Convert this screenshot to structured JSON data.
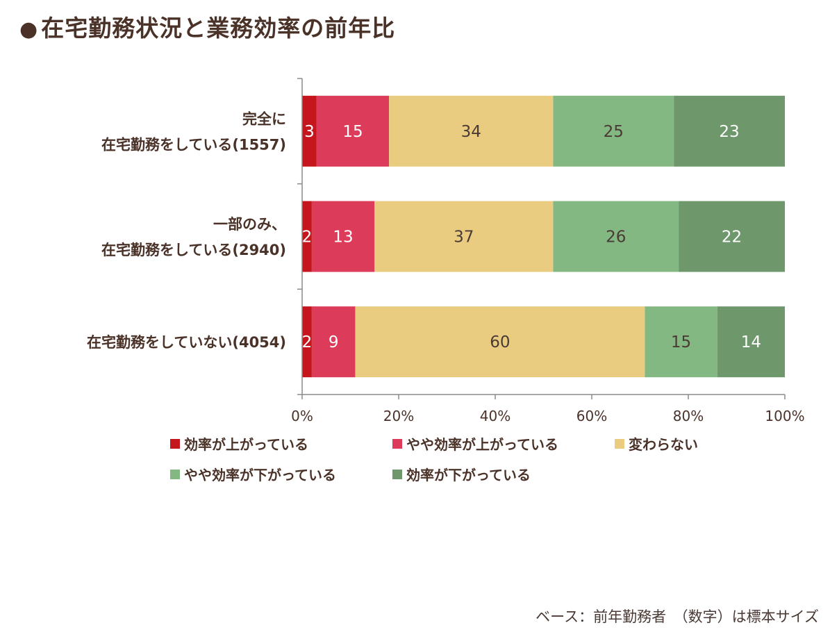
{
  "title": "在宅勤務状況と業務効率の前年比",
  "title_bullet": "●",
  "footer": "ベース：前年勤務者　（数字）は標本サイズ",
  "chart_data": {
    "type": "bar",
    "orientation": "horizontal",
    "stacked": true,
    "normalized": true,
    "categories": [
      [
        "完全に",
        "在宅勤務をしている(1557)"
      ],
      [
        "一部のみ、",
        "在宅勤務をしている(2940)"
      ],
      [
        "在宅勤務をしていない(4054)"
      ]
    ],
    "series": [
      {
        "name": "効率が上がっている",
        "color": "#c4161c",
        "label_color": "#ffffff",
        "values": [
          3,
          2,
          2
        ]
      },
      {
        "name": "やや効率が上がっている",
        "color": "#dc3b5a",
        "label_color": "#ffffff",
        "values": [
          15,
          13,
          9
        ]
      },
      {
        "name": "変わらない",
        "color": "#e9cc80",
        "label_color": "#4a3a35",
        "values": [
          34,
          37,
          60
        ]
      },
      {
        "name": "やや効率が下がっている",
        "color": "#84b882",
        "label_color": "#4a3a35",
        "values": [
          25,
          26,
          15
        ]
      },
      {
        "name": "効率が下がっている",
        "color": "#6e976b",
        "label_color": "#ffffff",
        "values": [
          23,
          22,
          14
        ]
      }
    ],
    "xticks": [
      "0%",
      "20%",
      "40%",
      "60%",
      "80%",
      "100%"
    ],
    "xlim": [
      0,
      100
    ],
    "legend_position": "bottom",
    "grid": false
  }
}
